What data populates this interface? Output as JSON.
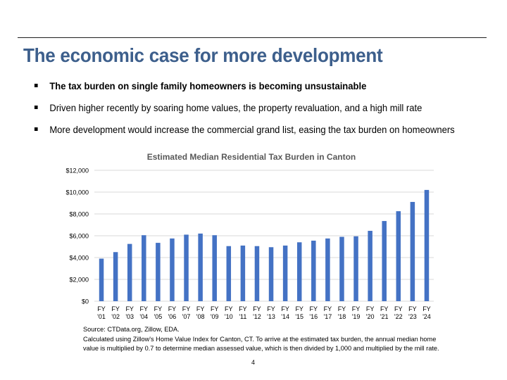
{
  "slide": {
    "title": "The economic case for more development",
    "bullets": [
      "The tax burden on single family homeowners is becoming unsustainable",
      "Driven higher recently by soaring home values, the property revaluation, and a high mill rate",
      "More development would increase the commercial grand list, easing the tax burden on homeowners"
    ],
    "source_lines": [
      "Source: CTData.org, Zillow, EDA.",
      "Calculated using Zillow's Home Value Index for Canton, CT. To arrive at the estimated tax burden, the annual median home",
      "value is multiplied by 0.7 to determine median assessed value, which is then divided by 1,000 and multiplied by the mill rate."
    ],
    "page_number": "4"
  },
  "colors": {
    "title": "#3d5f8c",
    "bar": "#4472c4",
    "grid": "#d9d9d9"
  },
  "chart_data": {
    "type": "bar",
    "title": "Estimated Median Residential Tax Burden in Canton",
    "xlabel": "",
    "ylabel": "",
    "ylim": [
      0,
      12000
    ],
    "yticks": [
      0,
      2000,
      4000,
      6000,
      8000,
      10000,
      12000
    ],
    "ytick_labels": [
      "$0",
      "$2,000",
      "$4,000",
      "$6,000",
      "$8,000",
      "$10,000",
      "$12,000"
    ],
    "grid": true,
    "categories": [
      [
        "FY",
        "'01"
      ],
      [
        "FY",
        "'02"
      ],
      [
        "FY",
        "'03"
      ],
      [
        "FY",
        "'04"
      ],
      [
        "FY",
        "'05"
      ],
      [
        "FY",
        "'06"
      ],
      [
        "FY",
        "'07"
      ],
      [
        "FY",
        "'08"
      ],
      [
        "FY",
        "'09"
      ],
      [
        "FY",
        "'10"
      ],
      [
        "FY",
        "'11"
      ],
      [
        "FY",
        "'12"
      ],
      [
        "FY",
        "'13"
      ],
      [
        "FY",
        "'14"
      ],
      [
        "FY",
        "'15"
      ],
      [
        "FY",
        "'16"
      ],
      [
        "FY",
        "'17"
      ],
      [
        "FY",
        "'18"
      ],
      [
        "FY",
        "'19"
      ],
      [
        "FY",
        "'20"
      ],
      [
        "FY",
        "'21"
      ],
      [
        "FY",
        "'22"
      ],
      [
        "FY",
        "'23"
      ],
      [
        "FY",
        "'24"
      ]
    ],
    "values": [
      3900,
      4500,
      5250,
      6050,
      5350,
      5750,
      6100,
      6200,
      6050,
      5050,
      5100,
      5050,
      4950,
      5100,
      5400,
      5550,
      5750,
      5900,
      5950,
      6450,
      7350,
      8250,
      9100,
      10200
    ]
  }
}
